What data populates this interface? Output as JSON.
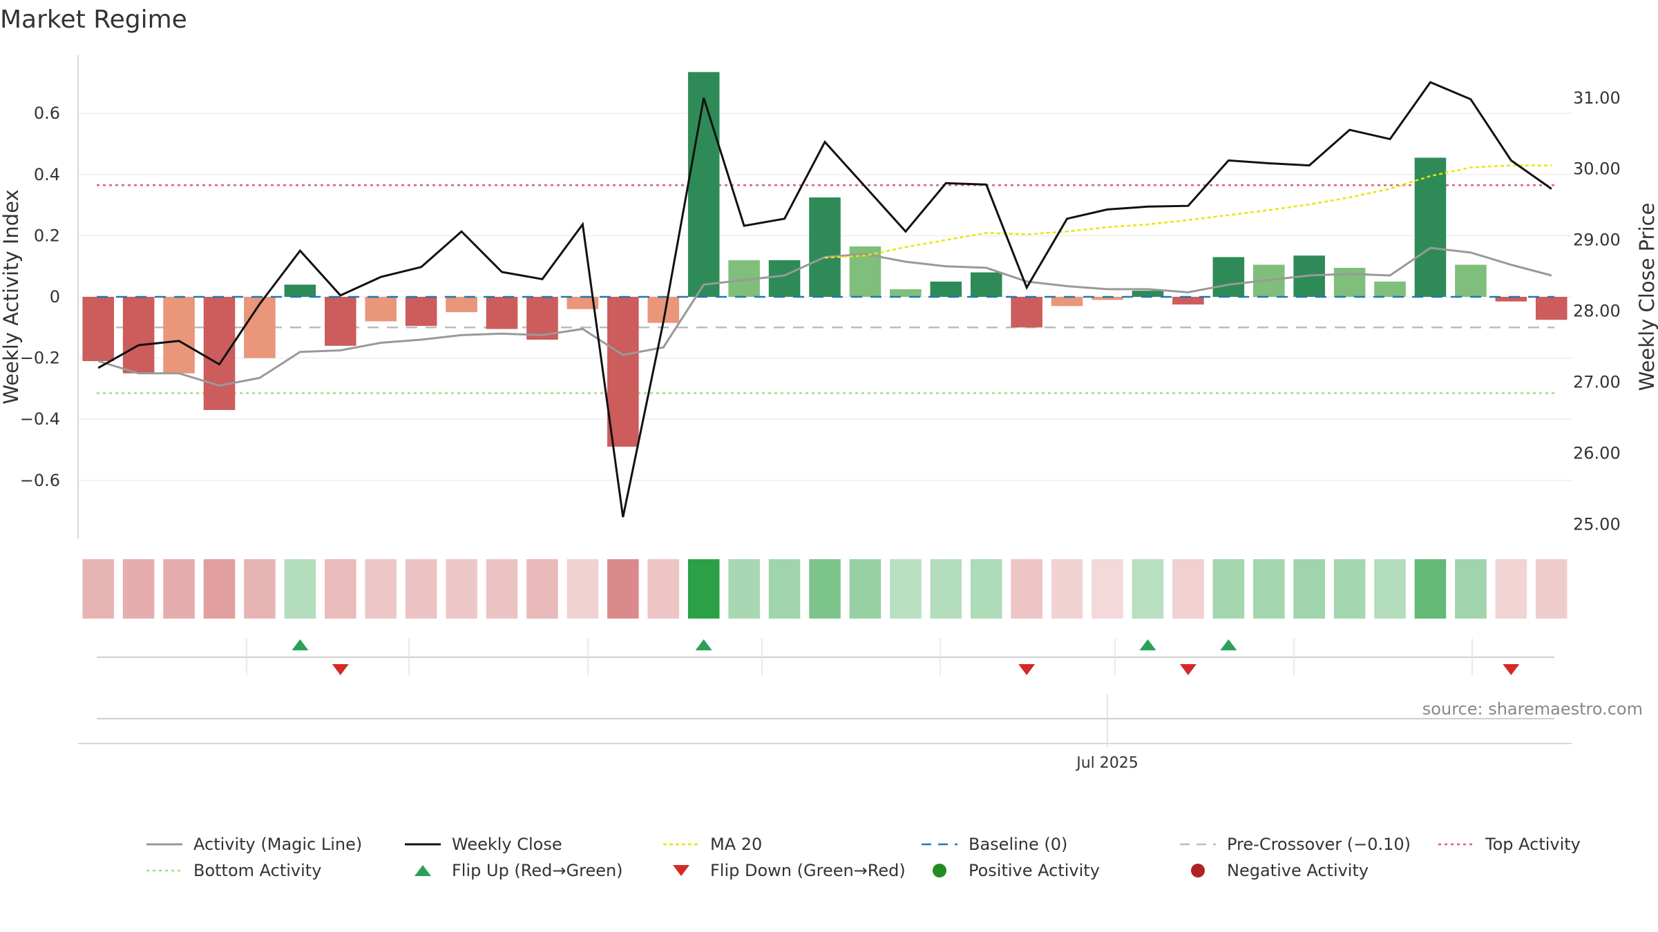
{
  "title": "Market Regime",
  "source": "source: sharemaestro.com",
  "colors": {
    "strong_green": "#2e8b57",
    "light_green": "#7fbf7b",
    "strong_red": "#cd5c5c",
    "light_red": "#e9967a",
    "close_line": "#111111",
    "magic_line": "#999999",
    "ma20": "#e6e600",
    "baseline": "#1f77b4",
    "pre_crossover": "#bbbbbb",
    "top_activity": "#e05c7a",
    "bottom_activity": "#9be36b",
    "flip_up": "#2ca05a",
    "flip_down": "#d62828"
  },
  "chart_data": {
    "type": "bar",
    "title": "Market Regime",
    "ylabel": "Weekly Activity Index",
    "y2label": "Weekly Close Price",
    "ylim": [
      -0.79,
      0.79
    ],
    "y2lim": [
      24.8,
      31.6
    ],
    "yticks": [
      "0.6",
      "0.4",
      "0.2",
      "0",
      "−0.2",
      "−0.4",
      "−0.6"
    ],
    "yticks_values": [
      0.6,
      0.4,
      0.2,
      0,
      -0.2,
      -0.4,
      -0.6
    ],
    "y2ticks": [
      "31.00",
      "30.00",
      "29.00",
      "28.00",
      "27.00",
      "26.00",
      "25.00"
    ],
    "y2ticks_values": [
      31,
      30,
      29,
      28,
      27,
      26,
      25
    ],
    "x_tick_label": "Jul 2025",
    "x_tick_index": 25.5,
    "grid": true,
    "legend_position": "bottom",
    "weeks": 37,
    "activity": [
      -0.21,
      -0.25,
      -0.25,
      -0.37,
      -0.2,
      0.04,
      -0.16,
      -0.08,
      -0.095,
      -0.05,
      -0.105,
      -0.14,
      -0.04,
      -0.49,
      -0.085,
      0.735,
      0.12,
      0.12,
      0.325,
      0.165,
      0.025,
      0.05,
      0.08,
      -0.1,
      -0.03,
      -0.01,
      0.02,
      -0.025,
      0.13,
      0.105,
      0.135,
      0.095,
      0.05,
      0.455,
      0.105,
      -0.015,
      -0.075
    ],
    "activity_strength": [
      "strong",
      "strong",
      "light",
      "strong",
      "light",
      "strong",
      "strong",
      "light",
      "strong",
      "light",
      "strong",
      "strong",
      "light",
      "strong",
      "light",
      "strong",
      "light",
      "strong",
      "strong",
      "light",
      "light",
      "strong",
      "strong",
      "strong",
      "light",
      "light",
      "strong",
      "strong",
      "strong",
      "light",
      "strong",
      "light",
      "light",
      "strong",
      "light",
      "strong",
      "strong"
    ],
    "weekly_close": [
      27.2,
      27.52,
      27.58,
      27.25,
      28.1,
      28.85,
      28.22,
      28.48,
      28.62,
      29.12,
      28.55,
      28.45,
      29.22,
      25.1,
      27.85,
      31.0,
      29.2,
      29.3,
      30.38,
      29.75,
      29.12,
      29.8,
      29.78,
      28.33,
      29.3,
      29.43,
      29.47,
      29.48,
      30.12,
      30.08,
      30.05,
      30.55,
      30.42,
      31.22,
      30.98,
      30.12,
      29.72
    ],
    "magic_line": [
      -0.21,
      -0.25,
      -0.25,
      -0.29,
      -0.265,
      -0.18,
      -0.175,
      -0.15,
      -0.14,
      -0.125,
      -0.12,
      -0.125,
      -0.105,
      -0.19,
      -0.165,
      0.04,
      0.055,
      0.07,
      0.13,
      0.14,
      0.115,
      0.1,
      0.095,
      0.05,
      0.035,
      0.025,
      0.025,
      0.015,
      0.04,
      0.055,
      0.07,
      0.075,
      0.07,
      0.16,
      0.145,
      0.105,
      0.07
    ],
    "ma20": [
      null,
      null,
      null,
      null,
      null,
      null,
      null,
      null,
      null,
      null,
      null,
      null,
      null,
      null,
      null,
      null,
      null,
      null,
      28.75,
      28.78,
      28.9,
      29.0,
      29.1,
      29.08,
      29.12,
      29.18,
      29.22,
      29.28,
      29.35,
      29.42,
      29.5,
      29.6,
      29.72,
      29.9,
      30.02,
      30.05,
      30.05
    ],
    "baseline": 0,
    "pre_crossover": -0.1,
    "top_activity": 0.365,
    "bottom_activity": -0.315,
    "heat_strip": [
      -0.45,
      -0.5,
      -0.5,
      -0.62,
      -0.45,
      0.25,
      -0.38,
      -0.28,
      -0.32,
      -0.28,
      -0.32,
      -0.4,
      -0.2,
      -0.78,
      -0.3,
      1.0,
      0.3,
      0.35,
      0.55,
      0.4,
      0.22,
      0.25,
      0.28,
      -0.3,
      -0.2,
      -0.15,
      0.22,
      -0.22,
      0.33,
      0.33,
      0.35,
      0.33,
      0.25,
      0.7,
      0.35,
      -0.18,
      -0.25
    ],
    "flip_up_weeks": [
      5,
      15,
      26,
      28
    ],
    "flip_down_weeks": [
      6,
      23,
      27,
      35
    ],
    "legend": [
      {
        "label": "Activity (Magic Line)",
        "symbol": "line-solid-gray"
      },
      {
        "label": "Weekly Close",
        "symbol": "line-solid-black"
      },
      {
        "label": "MA 20",
        "symbol": "line-dotted-yellow"
      },
      {
        "label": "Baseline (0)",
        "symbol": "line-dashed-blue"
      },
      {
        "label": "Pre-Crossover (−0.10)",
        "symbol": "line-dashed-gray"
      },
      {
        "label": "Top Activity",
        "symbol": "line-dotted-pink"
      },
      {
        "label": "Bottom Activity",
        "symbol": "line-dotted-green"
      },
      {
        "label": "Flip Up (Red→Green)",
        "symbol": "triangle-up-green"
      },
      {
        "label": "Flip Down (Green→Red)",
        "symbol": "triangle-down-red"
      },
      {
        "label": "Positive Activity",
        "symbol": "dot-green"
      },
      {
        "label": "Negative Activity",
        "symbol": "dot-red"
      }
    ]
  }
}
